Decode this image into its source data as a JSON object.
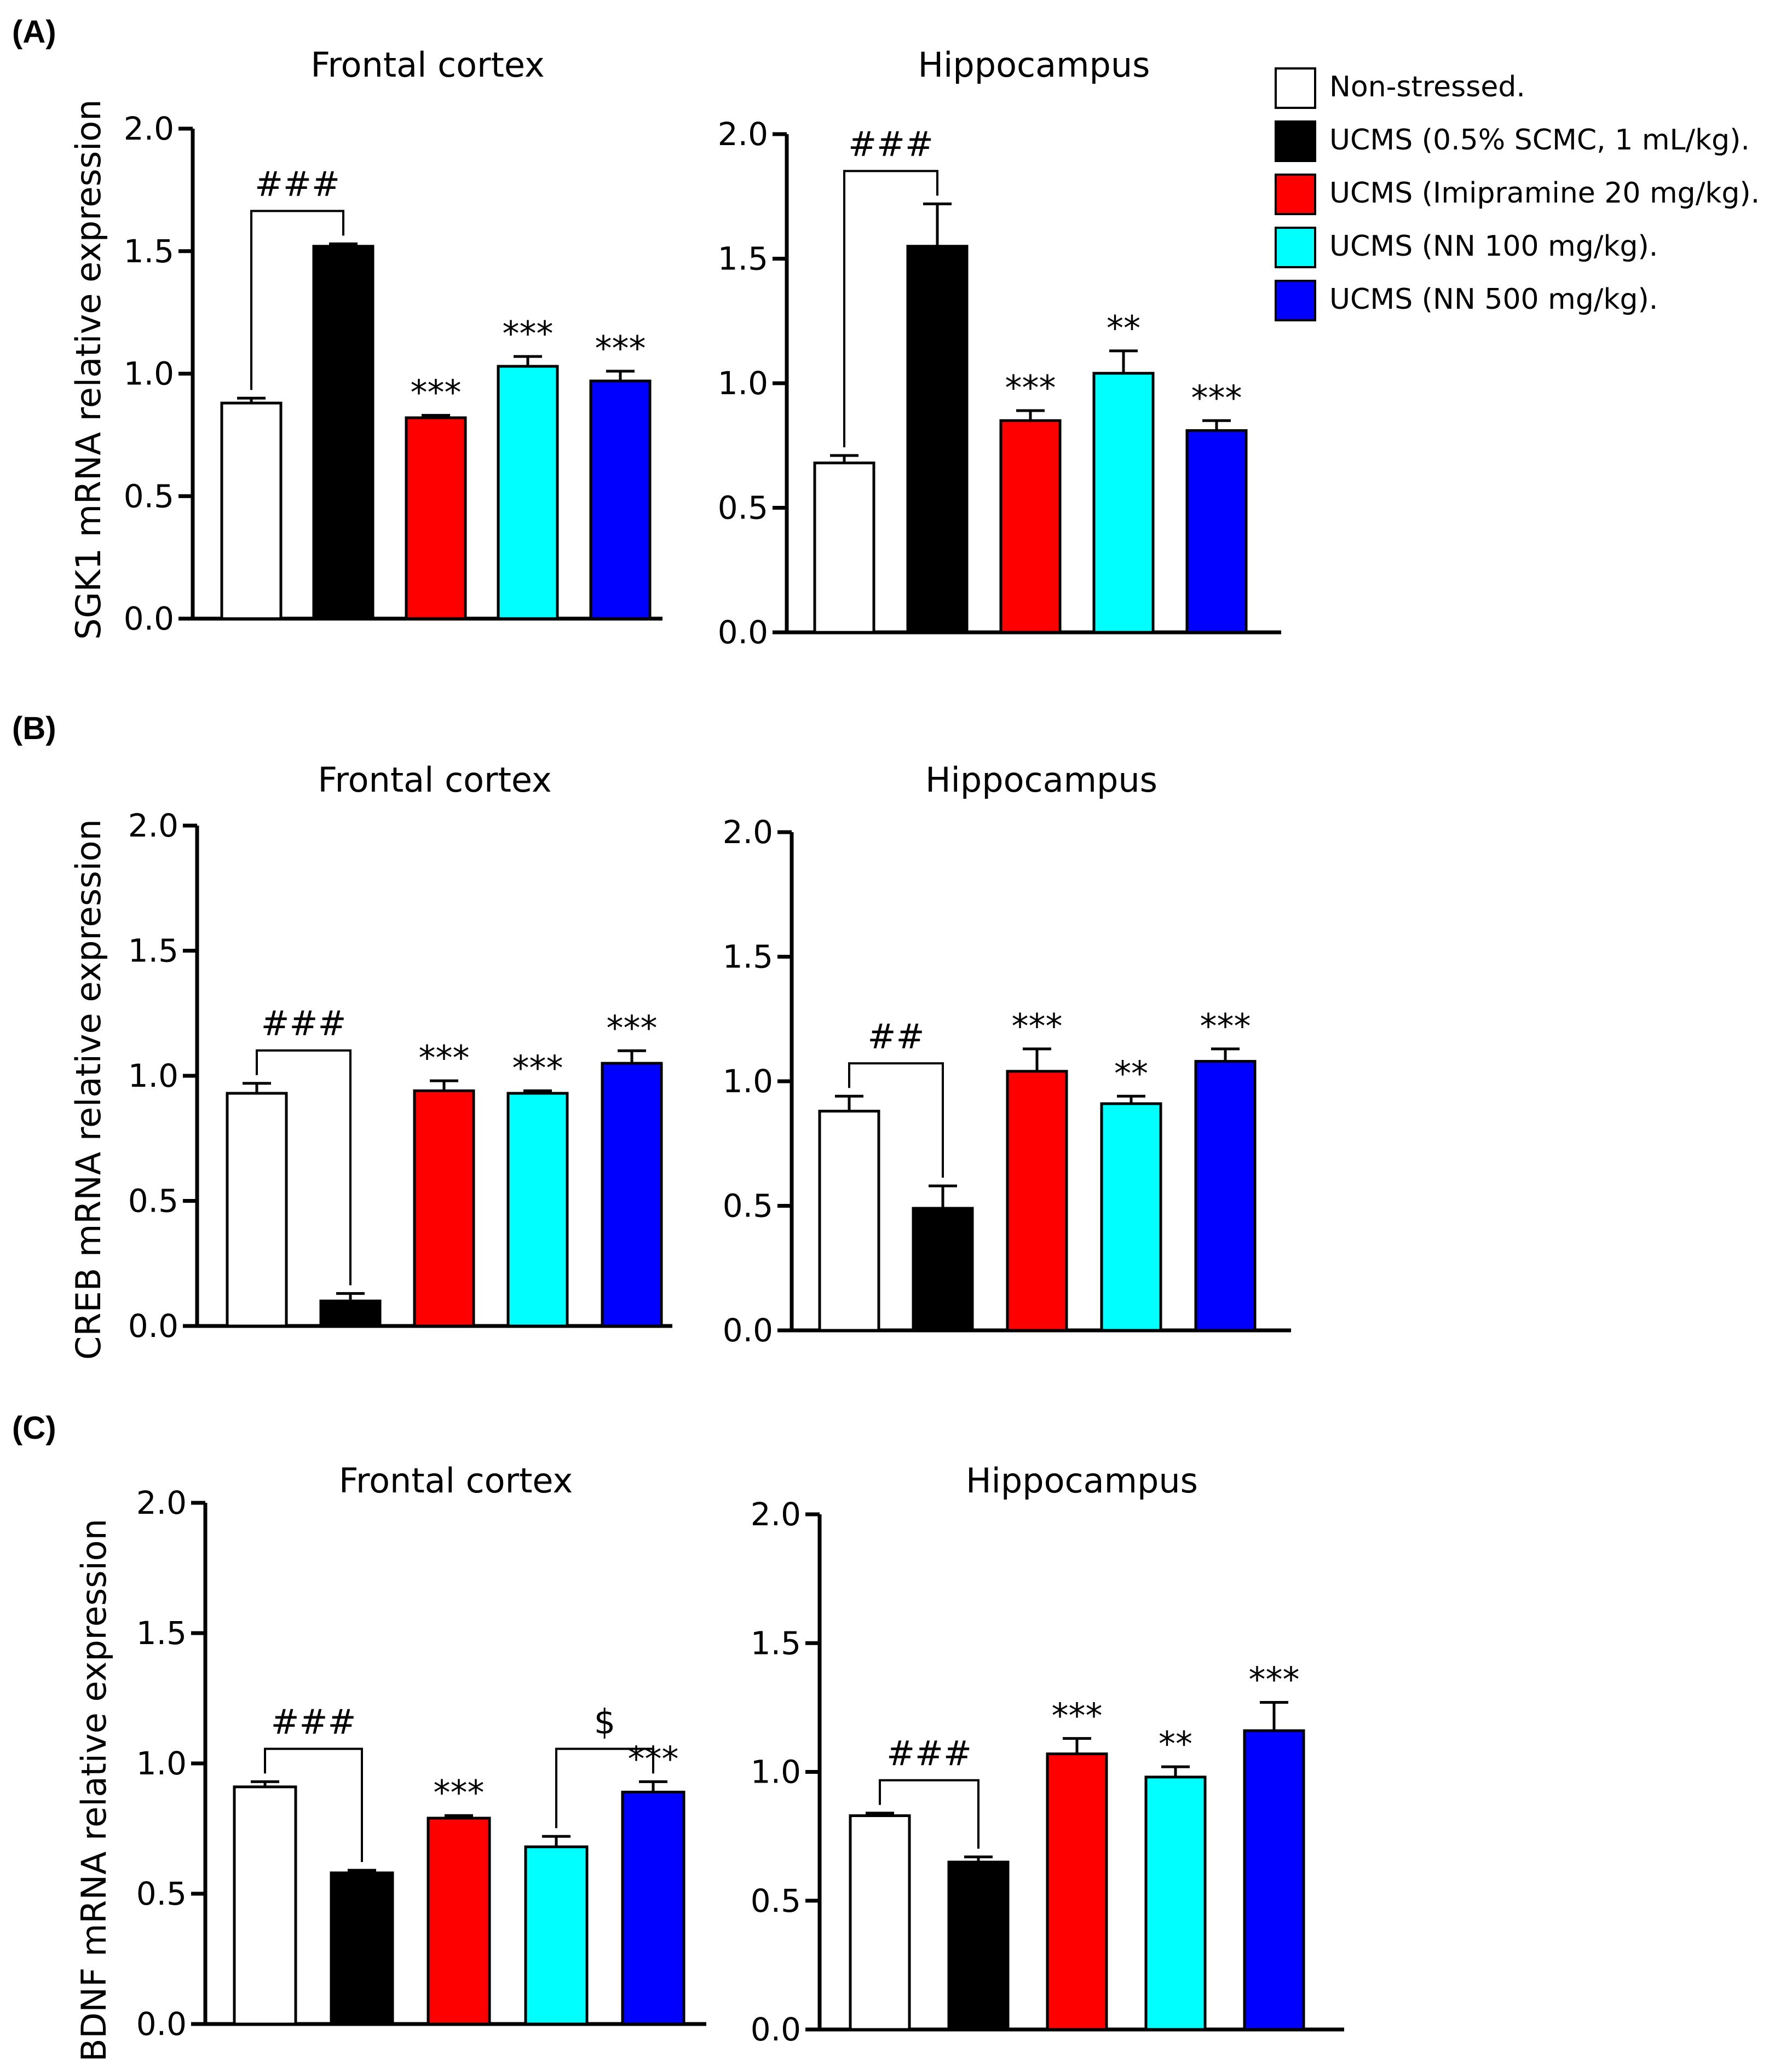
{
  "legend": {
    "items": [
      {
        "label": "Non-stressed.",
        "color": "#ffffff"
      },
      {
        "label": "UCMS (0.5% SCMC, 1 mL/kg).",
        "color": "#000000"
      },
      {
        "label": "UCMS (Imipramine 20 mg/kg).",
        "color": "#ff0000"
      },
      {
        "label": "UCMS (NN 100 mg/kg).",
        "color": "#00ffff"
      },
      {
        "label": "UCMS (NN 500 mg/kg).",
        "color": "#0000ff"
      }
    ]
  },
  "panels": [
    {
      "label": "(A)",
      "ylabel": "SGK1 mRNA relative expression"
    },
    {
      "label": "(B)",
      "ylabel": "CREB mRNA relative expression"
    },
    {
      "label": "(C)",
      "ylabel": "BDNF mRNA relative expression"
    }
  ],
  "chart_data": [
    {
      "type": "bar",
      "panel": "(A)",
      "title": "Frontal cortex",
      "ylabel": "SGK1 mRNA relative expression",
      "ylim": [
        0,
        2.0
      ],
      "yticks": [
        "0.0",
        "0.5",
        "1.0",
        "1.5",
        "2.0"
      ],
      "categories": [
        "Non-stressed.",
        "UCMS (0.5% SCMC, 1 mL/kg).",
        "UCMS (Imipramine 20 mg/kg).",
        "UCMS (NN 100 mg/kg).",
        "UCMS (NN 500 mg/kg)."
      ],
      "colors": [
        "#ffffff",
        "#000000",
        "#ff0000",
        "#00ffff",
        "#0000ff"
      ],
      "values": [
        0.88,
        1.52,
        0.82,
        1.03,
        0.97
      ],
      "errors": [
        0.02,
        0.01,
        0.01,
        0.04,
        0.04
      ],
      "annotations": [
        "",
        "",
        "***",
        "***",
        "***"
      ],
      "brackets": [
        {
          "from": 0,
          "to": 1,
          "label": "###"
        }
      ]
    },
    {
      "type": "bar",
      "panel": "(A)",
      "title": "Hippocampus",
      "ylabel": "",
      "ylim": [
        0,
        2.0
      ],
      "yticks": [
        "0.0",
        "0.5",
        "1.0",
        "1.5",
        "2.0"
      ],
      "categories": [
        "Non-stressed.",
        "UCMS (0.5% SCMC, 1 mL/kg).",
        "UCMS (Imipramine 20 mg/kg).",
        "UCMS (NN 100 mg/kg).",
        "UCMS (NN 500 mg/kg)."
      ],
      "colors": [
        "#ffffff",
        "#000000",
        "#ff0000",
        "#00ffff",
        "#0000ff"
      ],
      "values": [
        0.68,
        1.55,
        0.85,
        1.04,
        0.81
      ],
      "errors": [
        0.03,
        0.17,
        0.04,
        0.09,
        0.04
      ],
      "annotations": [
        "",
        "",
        "***",
        "**",
        "***"
      ],
      "brackets": [
        {
          "from": 0,
          "to": 1,
          "label": "###"
        }
      ]
    },
    {
      "type": "bar",
      "panel": "(B)",
      "title": "Frontal cortex",
      "ylabel": "CREB mRNA relative expression",
      "ylim": [
        0,
        2.0
      ],
      "yticks": [
        "0.0",
        "0.5",
        "1.0",
        "1.5",
        "2.0"
      ],
      "categories": [
        "Non-stressed.",
        "UCMS (0.5% SCMC, 1 mL/kg).",
        "UCMS (Imipramine 20 mg/kg).",
        "UCMS (NN 100 mg/kg).",
        "UCMS (NN 500 mg/kg)."
      ],
      "colors": [
        "#ffffff",
        "#000000",
        "#ff0000",
        "#00ffff",
        "#0000ff"
      ],
      "values": [
        0.93,
        0.1,
        0.94,
        0.93,
        1.05
      ],
      "errors": [
        0.04,
        0.03,
        0.04,
        0.01,
        0.05
      ],
      "annotations": [
        "",
        "",
        "***",
        "***",
        "***"
      ],
      "brackets": [
        {
          "from": 0,
          "to": 1,
          "label": "###"
        }
      ]
    },
    {
      "type": "bar",
      "panel": "(B)",
      "title": "Hippocampus",
      "ylabel": "",
      "ylim": [
        0,
        2.0
      ],
      "yticks": [
        "0.0",
        "0.5",
        "1.0",
        "1.5",
        "2.0"
      ],
      "categories": [
        "Non-stressed.",
        "UCMS (0.5% SCMC, 1 mL/kg).",
        "UCMS (Imipramine 20 mg/kg).",
        "UCMS (NN 100 mg/kg).",
        "UCMS (NN 500 mg/kg)."
      ],
      "colors": [
        "#ffffff",
        "#000000",
        "#ff0000",
        "#00ffff",
        "#0000ff"
      ],
      "values": [
        0.88,
        0.49,
        1.04,
        0.91,
        1.08
      ],
      "errors": [
        0.06,
        0.09,
        0.09,
        0.03,
        0.05
      ],
      "annotations": [
        "",
        "",
        "***",
        "**",
        "***"
      ],
      "brackets": [
        {
          "from": 0,
          "to": 1,
          "label": "##"
        }
      ]
    },
    {
      "type": "bar",
      "panel": "(C)",
      "title": "Frontal cortex",
      "ylabel": "BDNF mRNA relative expression",
      "ylim": [
        0,
        2.0
      ],
      "yticks": [
        "0.0",
        "0.5",
        "1.0",
        "1.5",
        "2.0"
      ],
      "categories": [
        "Non-stressed.",
        "UCMS (0.5% SCMC, 1 mL/kg).",
        "UCMS (Imipramine 20 mg/kg).",
        "UCMS (NN 100 mg/kg).",
        "UCMS (NN 500 mg/kg)."
      ],
      "colors": [
        "#ffffff",
        "#000000",
        "#ff0000",
        "#00ffff",
        "#0000ff"
      ],
      "values": [
        0.91,
        0.58,
        0.79,
        0.68,
        0.89
      ],
      "errors": [
        0.02,
        0.01,
        0.01,
        0.04,
        0.04
      ],
      "annotations": [
        "",
        "",
        "***",
        "",
        "***"
      ],
      "brackets": [
        {
          "from": 0,
          "to": 1,
          "label": "###"
        },
        {
          "from": 3,
          "to": 4,
          "label": "$"
        }
      ]
    },
    {
      "type": "bar",
      "panel": "(C)",
      "title": "Hippocampus",
      "ylabel": "",
      "ylim": [
        0,
        2.0
      ],
      "yticks": [
        "0.0",
        "0.5",
        "1.0",
        "1.5",
        "2.0"
      ],
      "categories": [
        "Non-stressed.",
        "UCMS (0.5% SCMC, 1 mL/kg).",
        "UCMS (Imipramine 20 mg/kg).",
        "UCMS (NN 100 mg/kg).",
        "UCMS (NN 500 mg/kg)."
      ],
      "colors": [
        "#ffffff",
        "#000000",
        "#ff0000",
        "#00ffff",
        "#0000ff"
      ],
      "values": [
        0.83,
        0.65,
        1.07,
        0.98,
        1.16
      ],
      "errors": [
        0.01,
        0.02,
        0.06,
        0.04,
        0.11
      ],
      "annotations": [
        "",
        "",
        "***",
        "**",
        "***"
      ],
      "brackets": [
        {
          "from": 0,
          "to": 1,
          "label": "###"
        }
      ]
    }
  ]
}
